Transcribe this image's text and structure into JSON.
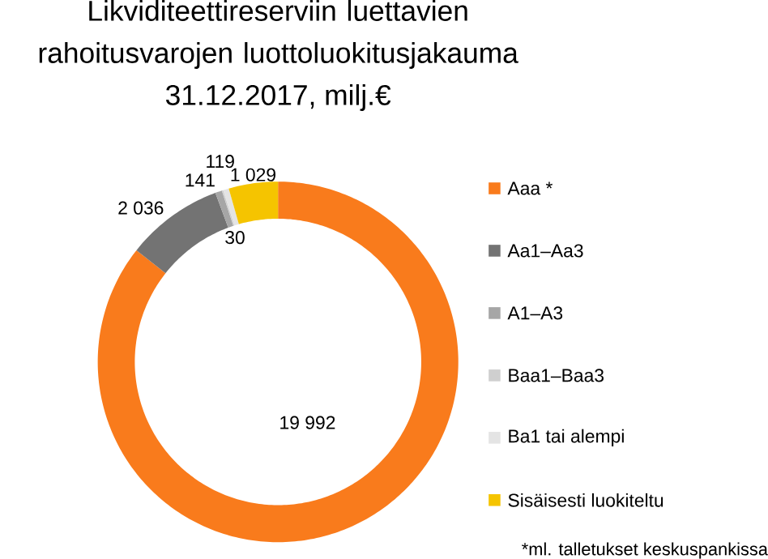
{
  "chart_data": {
    "type": "donut",
    "title": "Likviditeettireserviin luettavien rahoitusvarojen luottoluokitusjakauma",
    "subtitle": "31.12.2017, milj.€",
    "categories": [
      "Aaa *",
      "Aa1–Aa3",
      "A1–A3",
      "Baa1–Baa3",
      "Ba1 tai alempi",
      "Sisäisesti luokiteltu"
    ],
    "values": [
      19992,
      2036,
      141,
      30,
      119,
      1029
    ],
    "value_labels": [
      "19 992",
      "2 036",
      "141",
      "30",
      "119",
      "1 029"
    ],
    "colors": [
      "#f97b1c",
      "#737373",
      "#a6a6a6",
      "#cfcfcf",
      "#e4e4e4",
      "#f5c400"
    ],
    "legend": "right",
    "annotations": [
      "*ml. talletukset keskuspankissa"
    ]
  }
}
